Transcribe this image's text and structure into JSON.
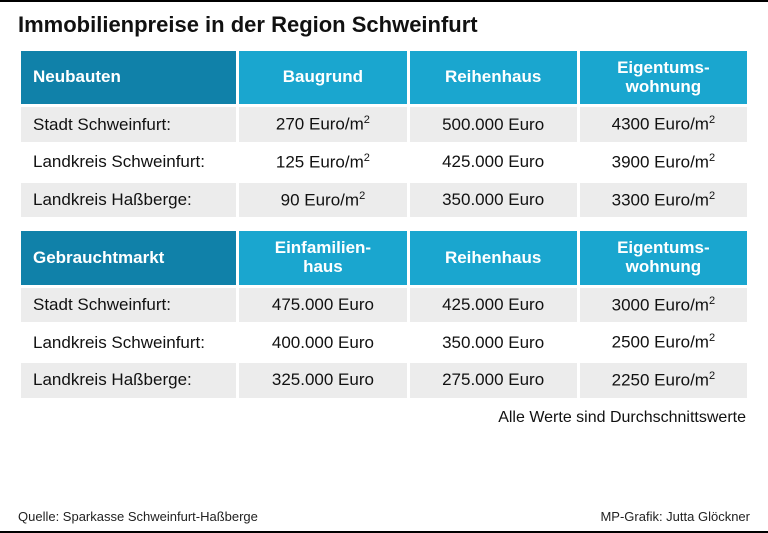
{
  "title": "Immobilienpreise in der Region Schweinfurt",
  "colors": {
    "header_dark": "#1081a9",
    "header_light": "#1aa6cf",
    "row_alt": "#ececec"
  },
  "table1": {
    "rowHeader": "Neubauten",
    "cols": [
      "Baugrund",
      "Reihenhaus",
      "Eigentums-\nwohnung"
    ],
    "rows": [
      {
        "label": "Stadt Schweinfurt:",
        "vals": [
          "270 Euro/m²",
          "500.000 Euro",
          "4300 Euro/m²"
        ]
      },
      {
        "label": "Landkreis Schweinfurt:",
        "vals": [
          "125 Euro/m²",
          "425.000 Euro",
          "3900 Euro/m²"
        ]
      },
      {
        "label": "Landkreis Haßberge:",
        "vals": [
          "90 Euro/m²",
          "350.000 Euro",
          "3300 Euro/m²"
        ]
      }
    ]
  },
  "table2": {
    "rowHeader": "Gebrauchtmarkt",
    "cols": [
      "Einfamilien-\nhaus",
      "Reihenhaus",
      "Eigentums-\nwohnung"
    ],
    "rows": [
      {
        "label": "Stadt Schweinfurt:",
        "vals": [
          "475.000 Euro",
          "425.000 Euro",
          "3000 Euro/m²"
        ]
      },
      {
        "label": "Landkreis Schweinfurt:",
        "vals": [
          "400.000 Euro",
          "350.000 Euro",
          "2500 Euro/m²"
        ]
      },
      {
        "label": "Landkreis Haßberge:",
        "vals": [
          "325.000 Euro",
          "275.000 Euro",
          "2250 Euro/m²"
        ]
      }
    ]
  },
  "note": "Alle Werte sind Durchschnittswerte",
  "source": "Quelle: Sparkasse Schweinfurt-Haßberge",
  "credit": "MP-Grafik: Jutta Glöckner",
  "colWidths": [
    "30%",
    "23.3%",
    "23.3%",
    "23.3%"
  ]
}
